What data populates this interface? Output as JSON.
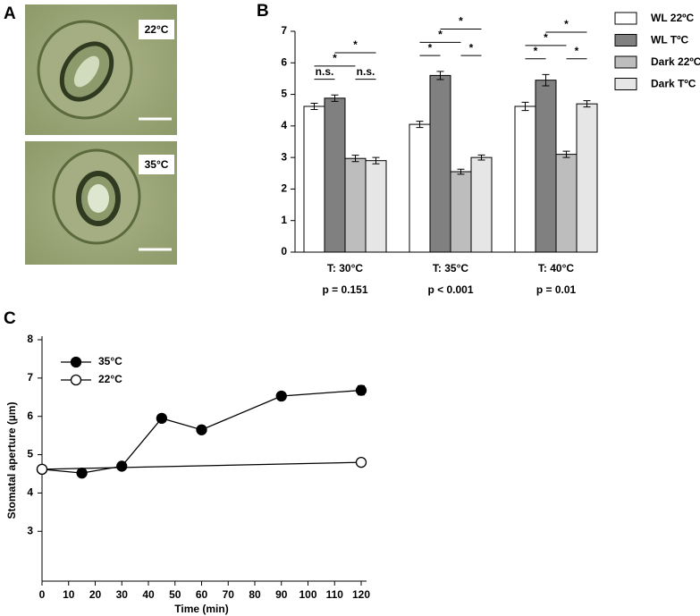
{
  "panel_a": {
    "label": "A",
    "images": [
      {
        "label": "22°C"
      },
      {
        "label": "35°C"
      }
    ]
  },
  "chart_data": [
    {
      "type": "bar",
      "panel_label": "B",
      "categories": [
        "T: 30°C",
        "T: 35°C",
        "T: 40°C"
      ],
      "p_values": [
        "p = 0.151",
        "p < 0.001",
        "p = 0.01"
      ],
      "series": [
        {
          "name": "WL 22ºC",
          "color": "#ffffff",
          "values": [
            4.62,
            4.05,
            4.62
          ],
          "errors": [
            0.1,
            0.1,
            0.13
          ]
        },
        {
          "name": "WL TºC",
          "color": "#808080",
          "values": [
            4.88,
            5.6,
            5.45
          ],
          "errors": [
            0.1,
            0.13,
            0.18
          ]
        },
        {
          "name": "Dark 22ºC",
          "color": "#bdbdbd",
          "values": [
            2.97,
            2.55,
            3.1
          ],
          "errors": [
            0.1,
            0.08,
            0.1
          ]
        },
        {
          "name": "Dark TºC",
          "color": "#e6e6e6",
          "values": [
            2.9,
            3.0,
            4.7
          ],
          "errors": [
            0.1,
            0.08,
            0.1
          ]
        }
      ],
      "ylim": [
        0,
        7
      ],
      "yticks": [
        0,
        1,
        2,
        3,
        4,
        5,
        6,
        7
      ],
      "legend": "right",
      "significance": [
        [
          {
            "bars": [
              0,
              1
            ],
            "label": "n.s."
          },
          {
            "bars": [
              2,
              3
            ],
            "label": "n.s."
          },
          {
            "bars": [
              0,
              2
            ],
            "label": "*"
          },
          {
            "bars": [
              1,
              3
            ],
            "label": "*"
          }
        ],
        [
          {
            "bars": [
              0,
              1
            ],
            "label": "*"
          },
          {
            "bars": [
              2,
              3
            ],
            "label": "*"
          },
          {
            "bars": [
              0,
              2
            ],
            "label": "*"
          },
          {
            "bars": [
              1,
              3
            ],
            "label": "*"
          }
        ],
        [
          {
            "bars": [
              0,
              1
            ],
            "label": "*"
          },
          {
            "bars": [
              2,
              3
            ],
            "label": "*"
          },
          {
            "bars": [
              0,
              2
            ],
            "label": "*"
          },
          {
            "bars": [
              1,
              3
            ],
            "label": "*"
          }
        ]
      ]
    },
    {
      "type": "line",
      "panel_label": "C",
      "x_label": "Time (min)",
      "y_label": "Stomatal aperture (µm)",
      "xlim": [
        0,
        120
      ],
      "xticks": [
        0,
        10,
        20,
        30,
        40,
        50,
        60,
        70,
        80,
        90,
        100,
        110,
        120
      ],
      "ylim": [
        1.7,
        8
      ],
      "yticks": [
        3,
        4,
        5,
        6,
        7,
        8
      ],
      "legend": "upper left",
      "series": [
        {
          "name": "35°C",
          "color": "#000000",
          "marker": "filled",
          "x": [
            0,
            15,
            30,
            45,
            60,
            90,
            120
          ],
          "values": [
            4.62,
            4.52,
            4.7,
            5.95,
            5.65,
            6.53,
            6.68
          ],
          "errors": [
            0.05,
            0.05,
            0.05,
            0.07,
            0.1,
            0.1,
            0.12
          ]
        },
        {
          "name": "22°C",
          "color": "#000000",
          "marker": "open",
          "x": [
            0,
            120
          ],
          "values": [
            4.62,
            4.8
          ],
          "errors": [
            0.05,
            0.1
          ]
        }
      ]
    }
  ]
}
